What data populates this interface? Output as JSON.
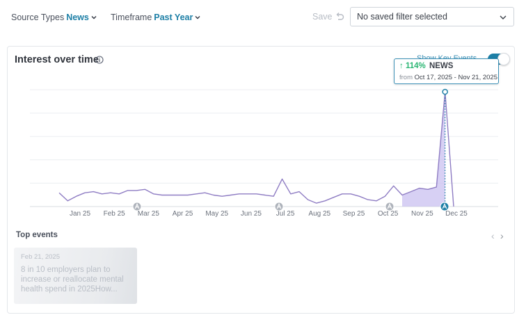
{
  "filters": {
    "source_types": {
      "label": "Source Types",
      "value": "News"
    },
    "timeframe": {
      "label": "Timeframe",
      "value": "Past Year"
    },
    "save_label": "Save",
    "saved_filter": {
      "value": "No saved filter selected"
    }
  },
  "card": {
    "title": "Interest over time",
    "toggle": {
      "label": "Show Key Events",
      "on": true
    },
    "tooltip": {
      "change": "114%",
      "series": "NEWS",
      "from_label": "from",
      "range": "Oct 17, 2025 - Nov 21, 2025"
    }
  },
  "chart_data": {
    "type": "line",
    "grid": true,
    "x_ticks": [
      "Jan 25",
      "Feb 25",
      "Mar 25",
      "Apr 25",
      "May 25",
      "Jun 25",
      "Jul 25",
      "Aug 25",
      "Sep 25",
      "Oct 25",
      "Nov 25",
      "Dec 25"
    ],
    "series": [
      {
        "values": [
          12,
          5,
          9,
          12,
          13,
          11,
          12,
          11,
          14,
          14,
          15,
          11,
          10,
          10,
          10,
          10,
          11,
          12,
          10,
          9,
          10,
          11,
          11,
          11,
          10,
          9,
          24,
          11,
          13,
          6,
          3,
          5,
          8,
          11,
          11,
          9,
          6,
          5,
          9,
          18,
          10,
          13,
          16,
          15,
          17,
          100,
          0
        ],
        "color": "#8e7cc3"
      }
    ],
    "highlight": {
      "from": "Oct 17, 2025",
      "to": "Nov 21, 2025",
      "fill": "#c9c0f0"
    },
    "key_event_markers": [
      "Mar 25",
      "Jul 25",
      "Oct 25",
      "Nov 25"
    ],
    "peak_marker": "Nov 21, 2025"
  },
  "top_events": {
    "title": "Top events",
    "items": [
      {
        "date": "Feb 21, 2025",
        "headline": "8 in 10 employers plan to increase or reallocate mental health spend in 2025How..."
      }
    ]
  },
  "colors": {
    "accent": "#1d7fa6",
    "line": "#8e7cc3",
    "positive": "#2bb673",
    "tooltip_border": "#3a8fb5"
  },
  "icons": {
    "info": "info-icon",
    "undo": "undo-icon",
    "chevron": "chevron-down-icon",
    "marker": "key-event-marker-icon"
  }
}
